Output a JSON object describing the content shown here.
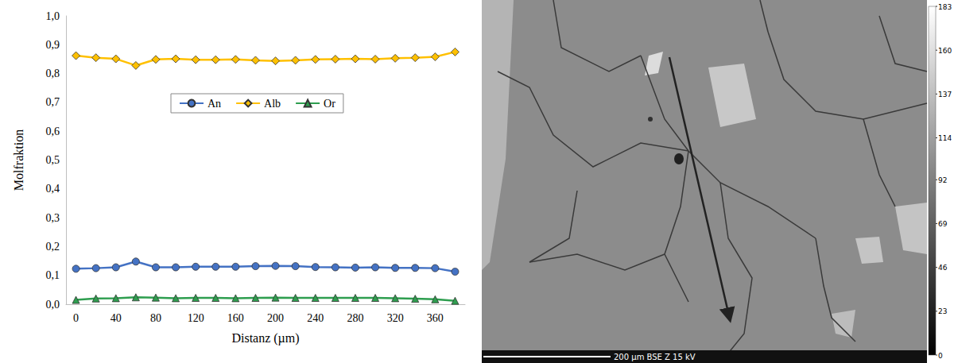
{
  "chart_data": {
    "type": "line",
    "x_label": "Distanz (µm)",
    "y_label": "Molfraktion",
    "categories": [
      "0",
      null,
      "40",
      null,
      "80",
      null,
      "120",
      null,
      "160",
      null,
      "200",
      null,
      "240",
      null,
      "280",
      null,
      "320",
      null,
      "360",
      null
    ],
    "series": [
      {
        "name": "An",
        "color": "#4472c4",
        "marker": "circle",
        "line_style": "solid",
        "values": [
          0.123,
          0.125,
          0.128,
          0.148,
          0.128,
          0.128,
          0.13,
          0.13,
          0.13,
          0.132,
          0.133,
          0.132,
          0.129,
          0.128,
          0.127,
          0.128,
          0.126,
          0.126,
          0.125,
          0.113
        ]
      },
      {
        "name": "Alb",
        "color": "#ffc000",
        "marker": "diamond",
        "line_style": "solid",
        "values": [
          0.862,
          0.855,
          0.851,
          0.828,
          0.849,
          0.851,
          0.848,
          0.848,
          0.849,
          0.846,
          0.844,
          0.846,
          0.849,
          0.85,
          0.851,
          0.85,
          0.853,
          0.855,
          0.858,
          0.875
        ]
      },
      {
        "name": "Or",
        "color": "#2e9e4f",
        "marker": "triangle",
        "line_style": "solid",
        "values": [
          0.015,
          0.02,
          0.021,
          0.024,
          0.023,
          0.021,
          0.022,
          0.022,
          0.021,
          0.022,
          0.023,
          0.022,
          0.022,
          0.022,
          0.022,
          0.022,
          0.021,
          0.019,
          0.017,
          0.012
        ]
      }
    ],
    "ylim": [
      0,
      1
    ],
    "yticks": [
      {
        "value": 0,
        "label": "0,0"
      },
      {
        "value": 0.1,
        "label": "0,1"
      },
      {
        "value": 0.2,
        "label": "0,2"
      },
      {
        "value": 0.3,
        "label": "0,3"
      },
      {
        "value": 0.4,
        "label": "0,4"
      },
      {
        "value": 0.5,
        "label": "0,5"
      },
      {
        "value": 0.6,
        "label": "0,6"
      },
      {
        "value": 0.7,
        "label": "0,7"
      },
      {
        "value": 0.8,
        "label": "0,8"
      },
      {
        "value": 0.9,
        "label": "0,9"
      },
      {
        "value": 1,
        "label": "1,0"
      }
    ],
    "grid": false,
    "legend": "center"
  },
  "micrograph": {
    "scale_text": "200 µm BSE Z 15 kV",
    "colorbar_range": [
      0,
      183
    ],
    "colorbar_ticks": [
      0,
      23,
      46,
      69,
      92,
      114,
      137,
      160,
      183
    ]
  }
}
